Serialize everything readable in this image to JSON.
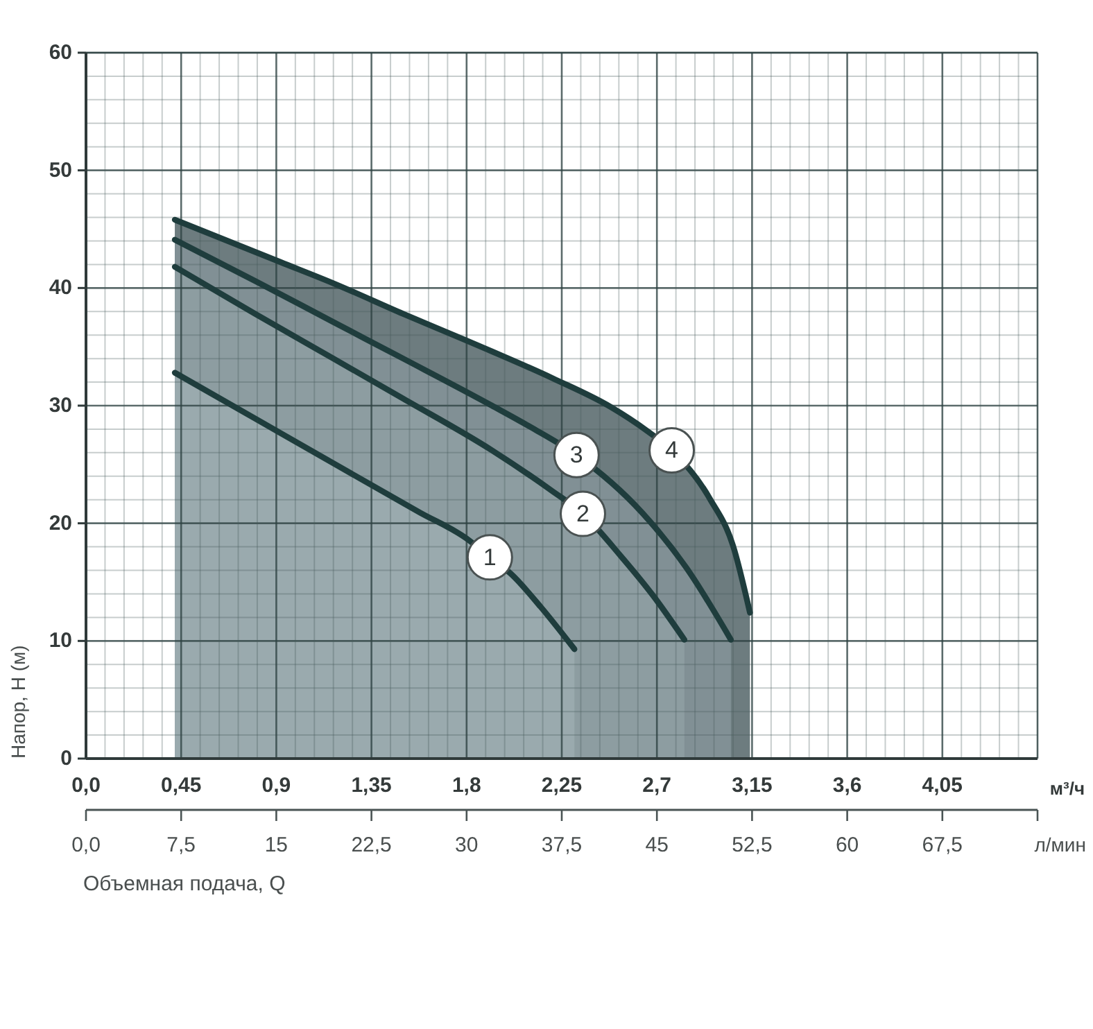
{
  "chart_data": {
    "type": "area",
    "color": "#1f3d3d",
    "xlabel": "м³/ч",
    "x2label": "л/мин",
    "ylabel": "Напор, H (м)",
    "annotations": [
      "Объемная подача, Q"
    ],
    "xlim": [
      0,
      4.5
    ],
    "xticks": [
      {
        "value": 0,
        "label": "0,0"
      },
      {
        "value": 0.09,
        "label": null
      },
      {
        "value": 0.18,
        "label": null
      },
      {
        "value": 0.27,
        "label": null
      },
      {
        "value": 0.36,
        "label": null
      },
      {
        "value": 0.45,
        "label": "0,45"
      },
      {
        "value": 0.54,
        "label": null
      },
      {
        "value": 0.63,
        "label": null
      },
      {
        "value": 0.72,
        "label": null
      },
      {
        "value": 0.81,
        "label": null
      },
      {
        "value": 0.9,
        "label": "0,9"
      },
      {
        "value": 0.99,
        "label": null
      },
      {
        "value": 1.08,
        "label": null
      },
      {
        "value": 1.17,
        "label": null
      },
      {
        "value": 1.26,
        "label": null
      },
      {
        "value": 1.35,
        "label": "1,35"
      },
      {
        "value": 1.44,
        "label": null
      },
      {
        "value": 1.53,
        "label": null
      },
      {
        "value": 1.62,
        "label": null
      },
      {
        "value": 1.71,
        "label": null
      },
      {
        "value": 1.8,
        "label": "1,8"
      },
      {
        "value": 1.89,
        "label": null
      },
      {
        "value": 1.98,
        "label": null
      },
      {
        "value": 2.07,
        "label": null
      },
      {
        "value": 2.16,
        "label": null
      },
      {
        "value": 2.25,
        "label": "2,25"
      },
      {
        "value": 2.34,
        "label": null
      },
      {
        "value": 2.43,
        "label": null
      },
      {
        "value": 2.52,
        "label": null
      },
      {
        "value": 2.61,
        "label": null
      },
      {
        "value": 2.7,
        "label": "2,7"
      },
      {
        "value": 2.79,
        "label": null
      },
      {
        "value": 2.88,
        "label": null
      },
      {
        "value": 2.97,
        "label": null
      },
      {
        "value": 3.06,
        "label": null
      },
      {
        "value": 3.15,
        "label": "3,15"
      },
      {
        "value": 3.24,
        "label": null
      },
      {
        "value": 3.33,
        "label": null
      },
      {
        "value": 3.42,
        "label": null
      },
      {
        "value": 3.51,
        "label": null
      },
      {
        "value": 3.6,
        "label": "3,6"
      },
      {
        "value": 3.69,
        "label": null
      },
      {
        "value": 3.78,
        "label": null
      },
      {
        "value": 3.87,
        "label": null
      },
      {
        "value": 3.96,
        "label": null
      },
      {
        "value": 4.05,
        "label": "4,05"
      },
      {
        "value": 4.14,
        "label": null
      },
      {
        "value": 4.23,
        "label": null
      },
      {
        "value": 4.32,
        "label": null
      },
      {
        "value": 4.41,
        "label": null
      },
      {
        "value": 4.5,
        "label": null
      }
    ],
    "x2lim": [
      0,
      75
    ],
    "x2ticks": [
      {
        "value": 0,
        "label": "0,0"
      },
      {
        "value": 7.5,
        "label": "7,5"
      },
      15,
      {
        "value": 22.5,
        "label": "22,5"
      },
      30,
      {
        "value": 37.5,
        "label": "37,5"
      },
      45,
      {
        "value": 52.5,
        "label": "52,5"
      },
      60,
      {
        "value": 67.5,
        "label": "67,5"
      },
      {
        "value": 75,
        "label": null
      }
    ],
    "ylim": [
      0,
      60
    ],
    "yticks": [
      0,
      {
        "value": 2,
        "label": null
      },
      {
        "value": 4,
        "label": null
      },
      {
        "value": 6,
        "label": null
      },
      {
        "value": 8,
        "label": null
      },
      10,
      {
        "value": 12,
        "label": null
      },
      {
        "value": 14,
        "label": null
      },
      {
        "value": 16,
        "label": null
      },
      {
        "value": 18,
        "label": null
      },
      20,
      {
        "value": 22,
        "label": null
      },
      {
        "value": 24,
        "label": null
      },
      {
        "value": 26,
        "label": null
      },
      {
        "value": 28,
        "label": null
      },
      30,
      {
        "value": 32,
        "label": null
      },
      {
        "value": 34,
        "label": null
      },
      {
        "value": 36,
        "label": null
      },
      {
        "value": 38,
        "label": null
      },
      40,
      {
        "value": 42,
        "label": null
      },
      {
        "value": 44,
        "label": null
      },
      {
        "value": 46,
        "label": null
      },
      {
        "value": 48,
        "label": null
      },
      50,
      {
        "value": 52,
        "label": null
      },
      {
        "value": 54,
        "label": null
      },
      {
        "value": 56,
        "label": null
      },
      {
        "value": 58,
        "label": null
      },
      60
    ],
    "grid": true,
    "series": [
      {
        "name": "1",
        "color": "#9aaaae",
        "x": [
          0.42,
          0.8,
          1.17,
          1.58,
          1.8,
          1.91,
          2.01,
          2.15,
          2.31
        ],
        "values": [
          32.8,
          28.9,
          25.1,
          20.9,
          18.7,
          17.1,
          15.7,
          12.9,
          9.3
        ]
      },
      {
        "name": "2",
        "color": "#8d9da1",
        "x": [
          0.42,
          0.8,
          1.17,
          1.5,
          1.92,
          2.2,
          2.35,
          2.53,
          2.68,
          2.83
        ],
        "values": [
          41.8,
          37.8,
          34.0,
          30.6,
          26.2,
          22.8,
          20.8,
          17.2,
          13.9,
          10.1
        ]
      },
      {
        "name": "3",
        "color": "#819095",
        "x": [
          0.42,
          0.8,
          1.17,
          1.5,
          1.92,
          2.12,
          2.32,
          2.63,
          2.84,
          3.05
        ],
        "values": [
          44.1,
          40.6,
          37.1,
          34.0,
          30.0,
          28.0,
          25.8,
          20.9,
          16.2,
          10.1
        ]
      },
      {
        "name": "4",
        "color": "#6d7c7f",
        "x": [
          0.42,
          0.92,
          1.17,
          1.5,
          1.79,
          2.21,
          2.48,
          2.65,
          2.77,
          2.95,
          3.06,
          3.14
        ],
        "values": [
          45.8,
          42.2,
          40.4,
          37.8,
          35.6,
          32.3,
          29.9,
          27.9,
          26.2,
          22.1,
          18.1,
          12.4
        ]
      }
    ]
  }
}
